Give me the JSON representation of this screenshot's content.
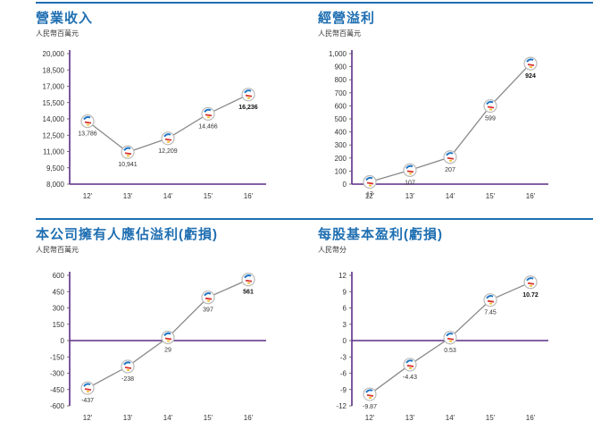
{
  "colors": {
    "rule": "#1f6fb2",
    "title": "#1f6fb2",
    "axis": "#5b2d86",
    "line": "#8a8a8a",
    "marker_ring": "#b9b9b9",
    "marker_blue": "#1f75c4",
    "marker_red": "#d8322f",
    "marker_yellow": "#f2c230"
  },
  "chart_data": [
    {
      "type": "line",
      "title": "營業收入",
      "ylabel": "人民幣百萬元",
      "categories": [
        "12'",
        "13'",
        "14'",
        "15'",
        "16'"
      ],
      "values": [
        13786,
        10941,
        12209,
        14466,
        16236
      ],
      "value_labels": [
        "13,786",
        "10,941",
        "12,209",
        "14,466",
        "16,236"
      ],
      "ylim": [
        8000,
        20000
      ],
      "yticks": [
        8000,
        9500,
        11000,
        12500,
        14000,
        15500,
        17000,
        18500,
        20000
      ],
      "ytick_labels": [
        "8,000",
        "9,500",
        "11,000",
        "12,500",
        "14,000",
        "15,500",
        "17,000",
        "18,500",
        "20,000"
      ],
      "grid": false
    },
    {
      "type": "line",
      "title": "經營溢利",
      "ylabel": "人民幣百萬元",
      "categories": [
        "12'",
        "13'",
        "14'",
        "15'",
        "16'"
      ],
      "values": [
        17,
        107,
        207,
        599,
        924
      ],
      "value_labels": [
        "17",
        "107",
        "207",
        "599",
        "924"
      ],
      "ylim": [
        0,
        1000
      ],
      "yticks": [
        0,
        100,
        200,
        300,
        400,
        500,
        600,
        700,
        800,
        900,
        1000
      ],
      "ytick_labels": [
        "0",
        "100",
        "200",
        "300",
        "400",
        "500",
        "600",
        "700",
        "800",
        "900",
        "1,000"
      ],
      "grid": false
    },
    {
      "type": "line",
      "title": "本公司擁有人應佔溢利(虧損)",
      "ylabel": "人民幣百萬元",
      "categories": [
        "12'",
        "13'",
        "14'",
        "15'",
        "16'"
      ],
      "values": [
        -437,
        -238,
        29,
        397,
        561
      ],
      "value_labels": [
        "-437",
        "-238",
        "29",
        "397",
        "561"
      ],
      "ylim": [
        -600,
        600
      ],
      "yticks": [
        -600,
        -450,
        -300,
        -150,
        0,
        150,
        300,
        450,
        600
      ],
      "ytick_labels": [
        "-600",
        "-450",
        "-300",
        "-150",
        "0",
        "150",
        "300",
        "450",
        "600"
      ],
      "grid": false
    },
    {
      "type": "line",
      "title": "每股基本盈利(虧損)",
      "ylabel": "人民幣分",
      "categories": [
        "12'",
        "13'",
        "14'",
        "15'",
        "16'"
      ],
      "values": [
        -9.87,
        -4.43,
        0.53,
        7.45,
        10.72
      ],
      "value_labels": [
        "-9.87",
        "-4.43",
        "0.53",
        "7.45",
        "10.72"
      ],
      "ylim": [
        -12,
        12
      ],
      "yticks": [
        -12,
        -9,
        -6,
        -3,
        0,
        3,
        6,
        9,
        12
      ],
      "ytick_labels": [
        "-12",
        "-9",
        "-6",
        "-3",
        "0",
        "3",
        "6",
        "9",
        "12"
      ],
      "grid": false
    }
  ]
}
